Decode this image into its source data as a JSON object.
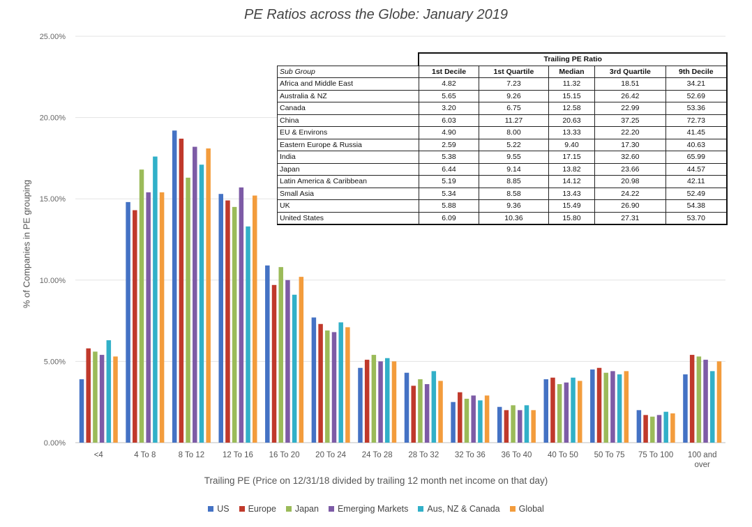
{
  "chart_data": {
    "type": "bar",
    "title": "PE Ratios across the Globe: January 2019",
    "xlabel": "Trailing PE (Price on 12/31/18 divided by trailing 12 month net income on that day)",
    "ylabel": "% of Companies in PE grouping",
    "ylim": [
      0,
      25
    ],
    "yticks": [
      "0.00%",
      "5.00%",
      "10.00%",
      "15.00%",
      "20.00%",
      "25.00%"
    ],
    "categories": [
      "<4",
      "4 To 8",
      "8 To 12",
      "12 To 16",
      "16 To 20",
      "20 To 24",
      "24 To 28",
      "28 To 32",
      "32 To 36",
      "36 To 40",
      "40 To 50",
      "50 To 75",
      "75 To 100",
      "100 and over"
    ],
    "legend_position": "bottom",
    "grid": true,
    "series": [
      {
        "name": "US",
        "color": "#4472c4",
        "values": [
          3.9,
          14.8,
          19.2,
          15.3,
          10.9,
          7.7,
          4.6,
          4.3,
          2.5,
          2.2,
          3.9,
          4.5,
          2.0,
          4.2
        ]
      },
      {
        "name": "Europe",
        "color": "#c0392b",
        "values": [
          5.8,
          14.3,
          18.7,
          14.9,
          9.7,
          7.3,
          5.1,
          3.5,
          3.1,
          2.0,
          4.0,
          4.6,
          1.7,
          5.4
        ]
      },
      {
        "name": "Japan",
        "color": "#9bbb59",
        "values": [
          5.6,
          16.8,
          16.3,
          14.5,
          10.8,
          6.9,
          5.4,
          3.9,
          2.7,
          2.3,
          3.6,
          4.3,
          1.6,
          5.3
        ]
      },
      {
        "name": "Emerging Markets",
        "color": "#7d5ba6",
        "values": [
          5.4,
          15.4,
          18.2,
          15.7,
          10.0,
          6.8,
          5.0,
          3.6,
          2.9,
          2.0,
          3.7,
          4.4,
          1.7,
          5.1
        ]
      },
      {
        "name": "Aus, NZ & Canada",
        "color": "#31b0c8",
        "values": [
          6.3,
          17.6,
          17.1,
          13.3,
          9.1,
          7.4,
          5.2,
          4.4,
          2.6,
          2.3,
          4.0,
          4.2,
          1.9,
          4.4
        ]
      },
      {
        "name": "Global",
        "color": "#f39c3c",
        "values": [
          5.3,
          15.4,
          18.1,
          15.2,
          10.2,
          7.1,
          5.0,
          3.8,
          2.9,
          2.0,
          3.8,
          4.4,
          1.8,
          5.0
        ]
      }
    ]
  },
  "table": {
    "group_header": "Trailing PE Ratio",
    "sub_group_label": "Sub Group",
    "columns": [
      "1st Decile",
      "1st Quartile",
      "Median",
      "3rd Quartile",
      "9th Decile"
    ],
    "rows": [
      {
        "name": "Africa and Middle East",
        "values": [
          "4.82",
          "7.23",
          "11.32",
          "18.51",
          "34.21"
        ]
      },
      {
        "name": "Australia & NZ",
        "values": [
          "5.65",
          "9.26",
          "15.15",
          "26.42",
          "52.69"
        ]
      },
      {
        "name": "Canada",
        "values": [
          "3.20",
          "6.75",
          "12.58",
          "22.99",
          "53.36"
        ]
      },
      {
        "name": "China",
        "values": [
          "6.03",
          "11.27",
          "20.63",
          "37.25",
          "72.73"
        ]
      },
      {
        "name": "EU & Environs",
        "values": [
          "4.90",
          "8.00",
          "13.33",
          "22.20",
          "41.45"
        ]
      },
      {
        "name": "Eastern Europe & Russia",
        "values": [
          "2.59",
          "5.22",
          "9.40",
          "17.30",
          "40.63"
        ]
      },
      {
        "name": "India",
        "values": [
          "5.38",
          "9.55",
          "17.15",
          "32.60",
          "65.99"
        ]
      },
      {
        "name": "Japan",
        "values": [
          "6.44",
          "9.14",
          "13.82",
          "23.66",
          "44.57"
        ]
      },
      {
        "name": "Latin America & Caribbean",
        "values": [
          "5.19",
          "8.85",
          "14.12",
          "20.98",
          "42.11"
        ]
      },
      {
        "name": "Small Asia",
        "values": [
          "5.34",
          "8.58",
          "13.43",
          "24.22",
          "52.49"
        ]
      },
      {
        "name": "UK",
        "values": [
          "5.88",
          "9.36",
          "15.49",
          "26.90",
          "54.38"
        ]
      },
      {
        "name": "United States",
        "values": [
          "6.09",
          "10.36",
          "15.80",
          "27.31",
          "53.70"
        ]
      }
    ]
  }
}
